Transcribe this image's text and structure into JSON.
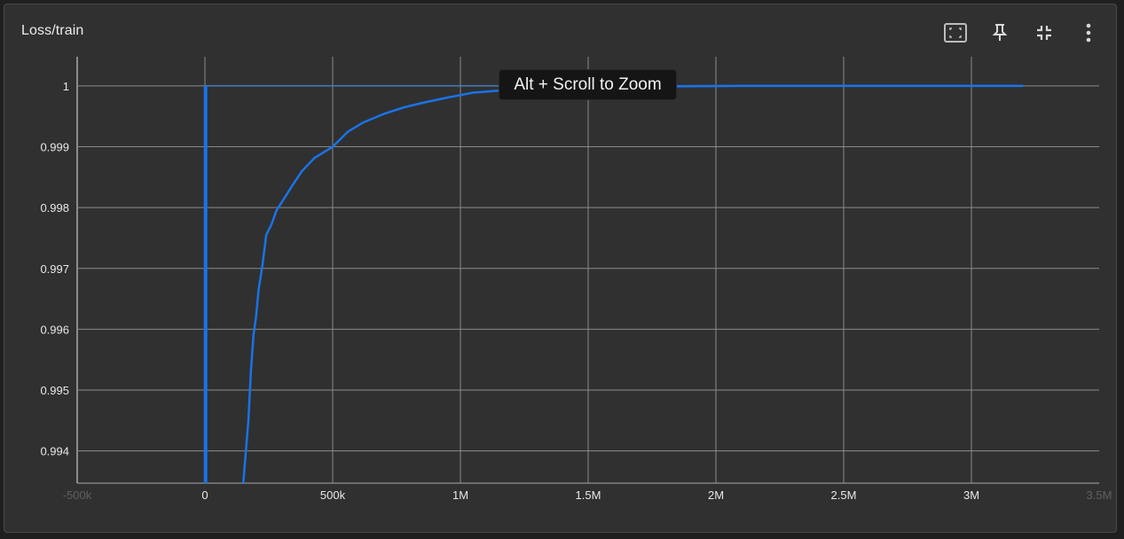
{
  "card": {
    "title": "Loss/train",
    "tooltip": "Alt + Scroll to Zoom",
    "toolbar": [
      {
        "icon": "fit-to-screen-icon"
      },
      {
        "icon": "pin-icon"
      },
      {
        "icon": "collapse-icon"
      },
      {
        "icon": "more-vert-icon"
      }
    ]
  },
  "colors": {
    "series": "#1a73e8",
    "grid": "#8a8a8a",
    "background": "#303030",
    "text": "#e8e8e8"
  },
  "chart_data": {
    "type": "line",
    "title": "Loss/train",
    "xlabel": "",
    "ylabel": "",
    "xlim": [
      -500000,
      3500000
    ],
    "ylim": [
      0.99347,
      1.00048
    ],
    "grid": true,
    "x_ticks": [
      -500000,
      0,
      500000,
      1000000,
      1500000,
      2000000,
      2500000,
      3000000,
      3500000
    ],
    "x_tick_labels": [
      "-500k",
      "0",
      "500k",
      "1M",
      "1.5M",
      "2M",
      "2.5M",
      "3M",
      "3.5M"
    ],
    "y_ticks": [
      0.994,
      0.995,
      0.996,
      0.997,
      0.998,
      0.999,
      1
    ],
    "y_tick_labels": [
      "0.994",
      "0.995",
      "0.996",
      "0.997",
      "0.998",
      "0.999",
      "1"
    ],
    "series": [
      {
        "x": [
          0,
          0,
          5000,
          5000,
          0,
          500000,
          1000000,
          1500000,
          2000000,
          2500000,
          3000000,
          3200000
        ],
        "y": [
          0.99347,
          1.0,
          1.0,
          0.99347,
          1.0,
          1.0,
          1.0,
          1.0,
          1.0,
          1.0,
          1.0,
          1.0
        ],
        "opacity": 0.35,
        "partial": [
          0,
          3
        ]
      },
      {
        "x": [
          150000,
          170000,
          180000,
          190000,
          200000,
          210000,
          225000,
          240000,
          260000,
          280000,
          310000,
          340000,
          380000,
          430000,
          500000,
          560000,
          620000,
          700000,
          780000,
          860000,
          950000,
          1050000,
          1200000,
          1400000,
          1700000,
          2100000,
          2600000,
          3000000,
          3200000
        ],
        "y": [
          0.99347,
          0.9945,
          0.9953,
          0.9959,
          0.9962,
          0.99665,
          0.99705,
          0.99755,
          0.99772,
          0.99795,
          0.99815,
          0.99835,
          0.9986,
          0.99882,
          0.999,
          0.99925,
          0.9994,
          0.99954,
          0.99965,
          0.99973,
          0.99981,
          0.99989,
          0.99994,
          0.99997,
          0.99999,
          1.0,
          1.0,
          1.0,
          1.0
        ]
      }
    ]
  }
}
